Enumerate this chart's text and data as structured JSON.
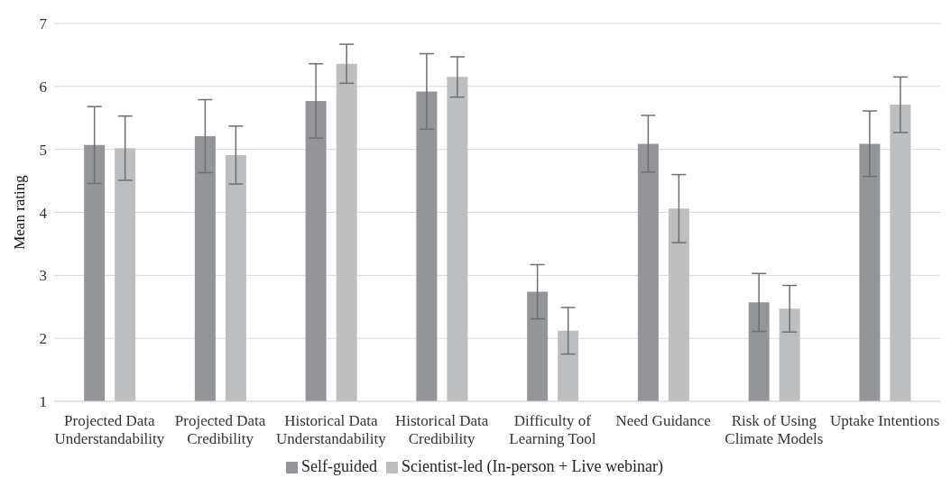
{
  "chart_data": {
    "type": "bar",
    "ylabel": "Mean rating",
    "categories": [
      "Projected Data Understandability",
      "Projected Data Credibility",
      "Historical Data Understandability",
      "Historical Data Credibility",
      "Difficulty of Learning Tool",
      "Need Guidance",
      "Risk of Using Climate Models",
      "Uptake Intentions"
    ],
    "series": [
      {
        "name": "Self-guided",
        "color": "#939598",
        "values": [
          5.07,
          5.21,
          5.77,
          5.92,
          2.74,
          5.09,
          2.57,
          5.09
        ],
        "errors": [
          0.61,
          0.58,
          0.59,
          0.6,
          0.43,
          0.45,
          0.46,
          0.52
        ]
      },
      {
        "name": "Scientist-led (In-person + Live webinar)",
        "color": "#bcbec0",
        "values": [
          5.02,
          4.91,
          6.36,
          6.15,
          2.12,
          4.06,
          2.47,
          5.71
        ],
        "errors": [
          0.51,
          0.46,
          0.31,
          0.32,
          0.37,
          0.54,
          0.37,
          0.44
        ]
      }
    ],
    "ylim": [
      1,
      7
    ],
    "yticks": [
      1,
      2,
      3,
      4,
      5,
      6,
      7
    ],
    "grid": "y",
    "legend": "bottom"
  }
}
